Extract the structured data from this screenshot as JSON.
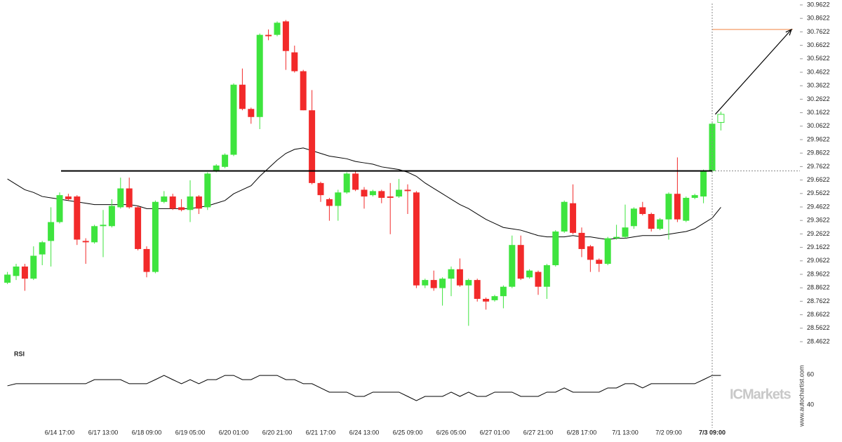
{
  "chart_data": [
    {
      "type": "candlestick",
      "categories": [
        null,
        null,
        null,
        null,
        null,
        null,
        "6/14 17:00",
        null,
        null,
        null,
        null,
        "6/17 13:00",
        null,
        null,
        null,
        null,
        "6/18 09:00",
        null,
        null,
        null,
        null,
        "6/19 05:00",
        null,
        null,
        null,
        null,
        "6/20 01:00",
        null,
        null,
        null,
        null,
        "6/20 21:00",
        null,
        null,
        null,
        null,
        "6/21 17:00",
        null,
        null,
        null,
        null,
        "6/24 13:00",
        null,
        null,
        null,
        null,
        "6/25 09:00",
        null,
        null,
        null,
        null,
        "6/26 05:00",
        null,
        null,
        null,
        null,
        "6/27 01:00",
        null,
        null,
        null,
        null,
        "6/27 21:00",
        null,
        null,
        null,
        null,
        "6/28 17:00",
        null,
        null,
        null,
        null,
        "7/1 13:00",
        null,
        null,
        null,
        null,
        "7/2 09:00",
        null,
        null,
        null,
        null,
        "7/3 09:00",
        null
      ],
      "open": [
        28.9,
        28.95,
        29.02,
        28.93,
        29.11,
        29.21,
        29.35,
        29.54,
        29.54,
        29.21,
        29.2,
        29.32,
        29.32,
        29.46,
        29.6,
        29.46,
        29.15,
        28.98,
        29.5,
        29.54,
        29.46,
        29.44,
        29.54,
        29.46,
        29.73,
        29.76,
        29.85,
        30.37,
        30.19,
        30.13,
        30.74,
        30.74,
        30.84,
        30.61,
        30.47,
        30.18,
        29.64,
        29.52,
        29.47,
        29.57,
        29.71,
        29.59,
        29.55,
        29.58,
        29.54,
        29.54,
        29.59,
        29.57,
        28.88,
        28.92,
        28.86,
        28.93,
        29.0,
        28.88,
        28.92,
        28.78,
        28.77,
        28.8,
        28.87,
        29.18,
        28.94,
        28.98,
        28.87,
        29.03,
        29.28,
        29.49,
        29.27,
        29.17,
        29.07,
        29.04,
        29.23,
        29.24,
        29.32,
        29.46,
        29.41,
        29.3,
        29.37,
        29.56,
        29.36,
        29.53,
        29.54,
        29.73,
        30.09
      ],
      "high": [
        28.98,
        29.04,
        29.04,
        29.17,
        29.21,
        29.46,
        29.57,
        29.56,
        29.55,
        29.23,
        29.33,
        29.44,
        29.52,
        29.68,
        29.68,
        29.47,
        29.17,
        29.51,
        29.58,
        29.56,
        29.52,
        29.66,
        29.55,
        29.72,
        29.78,
        29.86,
        30.38,
        30.49,
        30.2,
        30.75,
        30.78,
        30.84,
        30.85,
        30.66,
        30.48,
        30.33,
        29.65,
        29.53,
        29.59,
        29.72,
        29.73,
        29.61,
        29.59,
        29.59,
        29.64,
        29.67,
        29.63,
        29.58,
        28.93,
        28.99,
        28.94,
        29.02,
        29.08,
        28.93,
        28.93,
        28.79,
        28.81,
        28.88,
        29.25,
        29.25,
        29.0,
        28.99,
        29.04,
        29.29,
        29.51,
        29.63,
        29.31,
        29.18,
        29.08,
        29.24,
        29.33,
        29.48,
        29.46,
        29.5,
        29.42,
        29.38,
        29.57,
        29.83,
        29.54,
        29.56,
        29.74,
        30.09,
        30.17
      ],
      "low": [
        28.89,
        28.92,
        28.84,
        28.92,
        29.03,
        29.02,
        29.34,
        29.51,
        29.18,
        29.04,
        29.19,
        29.09,
        29.31,
        29.45,
        29.45,
        29.14,
        28.94,
        28.97,
        29.49,
        29.44,
        29.43,
        29.35,
        29.41,
        29.44,
        29.72,
        29.75,
        29.84,
        30.18,
        30.08,
        30.04,
        30.7,
        30.73,
        30.48,
        30.46,
        30.18,
        29.63,
        29.5,
        29.36,
        29.36,
        29.56,
        29.58,
        29.45,
        29.54,
        29.49,
        29.26,
        29.53,
        29.41,
        28.86,
        28.86,
        28.84,
        28.73,
        28.8,
        28.87,
        28.58,
        28.76,
        28.7,
        28.76,
        28.71,
        28.86,
        28.92,
        28.93,
        28.81,
        28.78,
        29.02,
        29.27,
        29.26,
        29.09,
        28.98,
        28.98,
        29.03,
        29.22,
        29.23,
        29.3,
        29.4,
        29.28,
        29.29,
        29.22,
        29.35,
        29.35,
        29.52,
        29.49,
        29.72,
        30.03
      ],
      "close": [
        28.96,
        29.02,
        28.93,
        29.1,
        29.2,
        29.35,
        29.55,
        29.52,
        29.22,
        29.2,
        29.32,
        29.33,
        29.47,
        29.6,
        29.46,
        29.15,
        28.98,
        29.5,
        29.54,
        29.45,
        29.44,
        29.54,
        29.45,
        29.71,
        29.77,
        29.85,
        30.37,
        30.19,
        30.13,
        30.74,
        30.73,
        30.83,
        30.62,
        30.47,
        30.18,
        29.64,
        29.55,
        29.47,
        29.57,
        29.71,
        29.59,
        29.54,
        29.58,
        29.53,
        29.53,
        29.59,
        29.58,
        28.88,
        28.92,
        28.86,
        28.93,
        29.0,
        28.88,
        28.92,
        28.78,
        28.76,
        28.8,
        28.87,
        29.18,
        28.93,
        28.99,
        28.87,
        29.03,
        29.28,
        29.5,
        29.27,
        29.15,
        29.07,
        29.04,
        29.23,
        29.24,
        29.31,
        29.45,
        29.41,
        29.3,
        29.37,
        29.56,
        29.37,
        29.53,
        29.55,
        29.73,
        30.08,
        30.15
      ],
      "ma": [
        29.67,
        29.63,
        29.59,
        29.57,
        29.54,
        29.53,
        29.52,
        29.51,
        29.5,
        29.49,
        29.48,
        29.48,
        29.48,
        29.48,
        29.48,
        29.47,
        29.45,
        29.45,
        29.45,
        29.45,
        29.45,
        29.45,
        29.46,
        29.47,
        29.49,
        29.51,
        29.56,
        29.59,
        29.62,
        29.69,
        29.75,
        29.81,
        29.86,
        29.89,
        29.9,
        29.88,
        29.86,
        29.84,
        29.83,
        29.82,
        29.8,
        29.79,
        29.78,
        29.76,
        29.75,
        29.74,
        29.72,
        29.69,
        29.64,
        29.6,
        29.56,
        29.52,
        29.48,
        29.45,
        29.41,
        29.37,
        29.34,
        29.31,
        29.3,
        29.29,
        29.27,
        29.25,
        29.24,
        29.24,
        29.24,
        29.25,
        29.24,
        29.24,
        29.23,
        29.22,
        29.23,
        29.23,
        29.24,
        29.25,
        29.25,
        29.25,
        29.26,
        29.27,
        29.28,
        29.3,
        29.34,
        29.38,
        29.46
      ],
      "level": 29.73,
      "target": 30.78,
      "up_color": "#3ee43e",
      "down_color": "#f22a2a",
      "ma_color": "#000000",
      "target_color": "#f0813c",
      "ylim": [
        28.4622,
        30.9622
      ],
      "yticks": [
        28.4622,
        28.5622,
        28.6622,
        28.7622,
        28.8622,
        28.9622,
        29.0622,
        29.1622,
        29.2622,
        29.3622,
        29.4622,
        29.5622,
        29.6622,
        29.7622,
        29.8622,
        29.9622,
        30.0622,
        30.1622,
        30.2622,
        30.3622,
        30.4622,
        30.5622,
        30.6622,
        30.7622,
        30.8622,
        30.9622
      ],
      "watermark": "ICMarkets",
      "source": "www.autochartist.com"
    },
    {
      "type": "line",
      "title": "RSI",
      "values": [
        52.6,
        54,
        54,
        54,
        54,
        54,
        54,
        54,
        54,
        54,
        56.7,
        56.7,
        56.7,
        56.7,
        54,
        54,
        54,
        56.7,
        59.5,
        56.7,
        54,
        56.7,
        54,
        56.7,
        56.7,
        59.5,
        59.5,
        56.7,
        56.7,
        59.5,
        59.5,
        59.5,
        56.7,
        56.7,
        54,
        54,
        51.2,
        48.4,
        48.4,
        48.4,
        45.6,
        45.6,
        48.4,
        48.4,
        48.4,
        48.4,
        45.6,
        42.8,
        45.6,
        45.6,
        45.6,
        48.4,
        45.6,
        48.4,
        45.6,
        45.6,
        48.4,
        48.4,
        48.4,
        45.6,
        45.6,
        45.6,
        48.4,
        48.4,
        51.2,
        48.4,
        48.4,
        48.4,
        48.4,
        51.2,
        51.2,
        54,
        54,
        51.2,
        54,
        54,
        54,
        54,
        54,
        54,
        56.7,
        59.5,
        59.5
      ],
      "color": "#000000",
      "ylim": [
        24.7,
        75.8
      ],
      "yticks": [
        40,
        60
      ]
    }
  ]
}
